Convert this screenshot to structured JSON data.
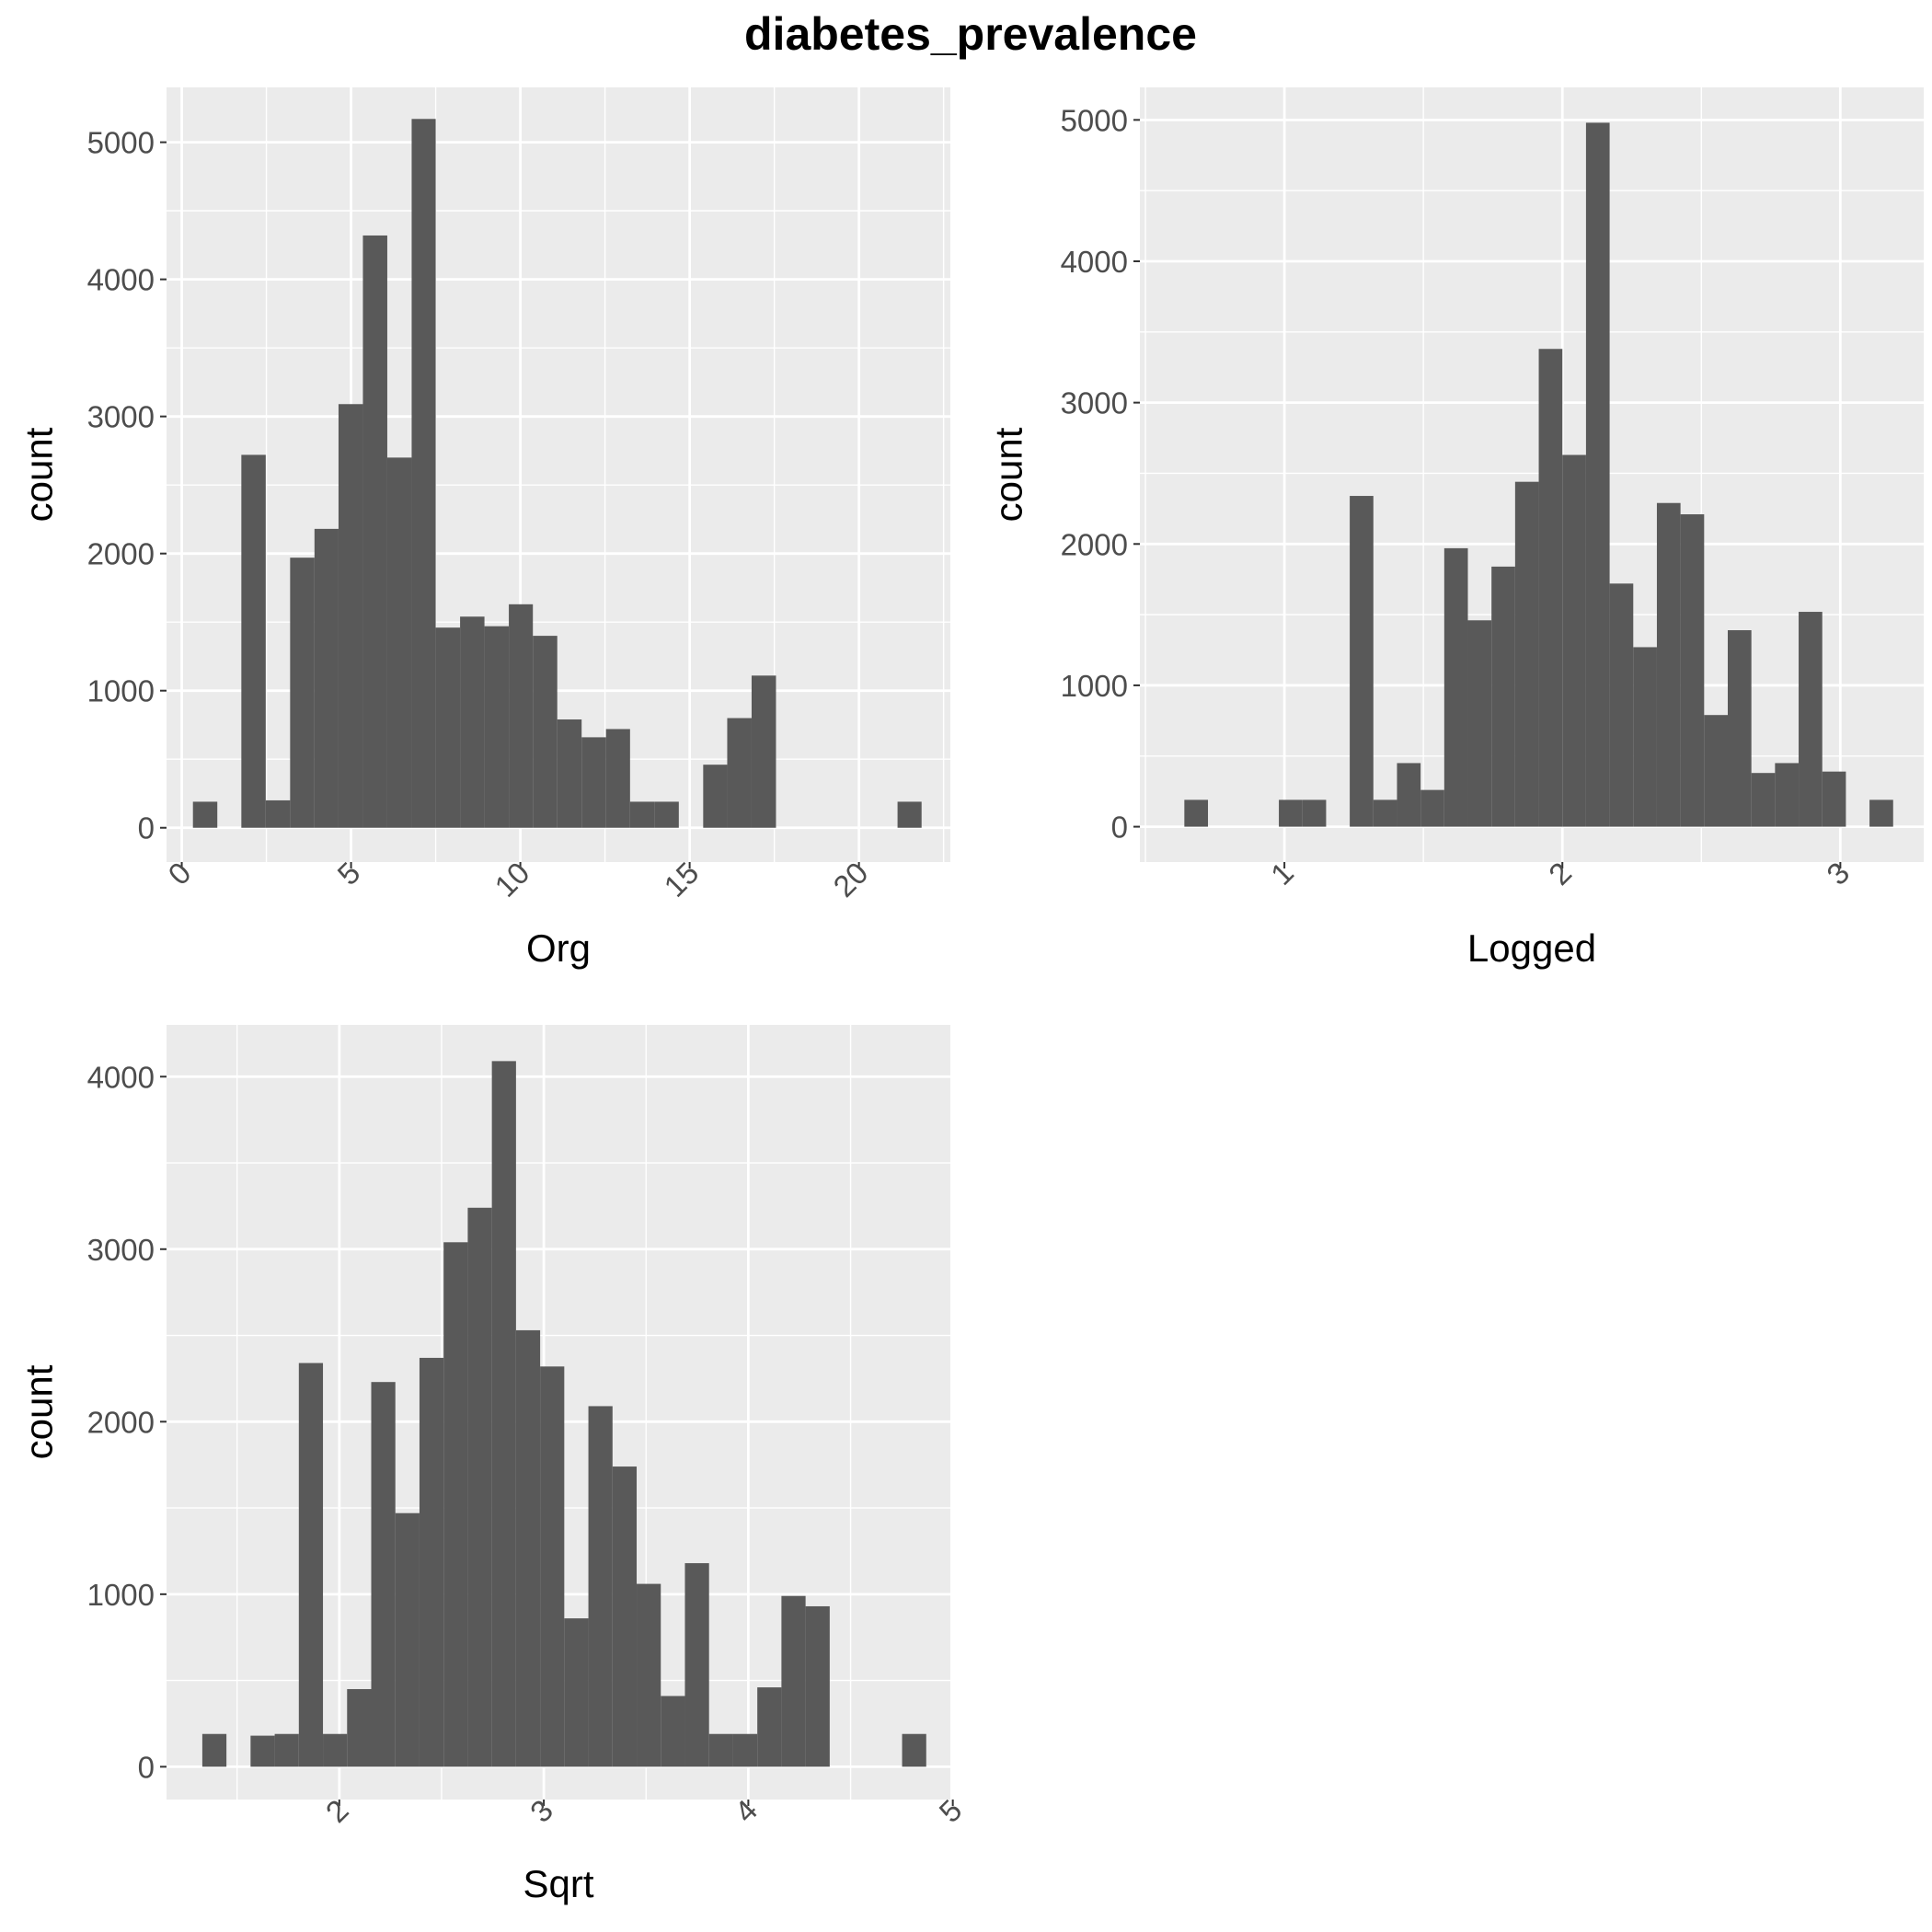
{
  "title": "diabetes_prevalence",
  "colors": {
    "panel_bg": "#EBEBEB",
    "grid_major": "#FFFFFF",
    "bar": "#595959",
    "tick_text": "#4D4D4D",
    "axis_title": "#000000"
  },
  "chart_data": [
    {
      "type": "bar",
      "title": "",
      "xlabel": "Org",
      "ylabel": "count",
      "xlim": [
        -0.45,
        22.7
      ],
      "ylim": [
        -250,
        5400
      ],
      "xticks": [
        0,
        5,
        10,
        15,
        20
      ],
      "xtick_labels": [
        "0",
        "5",
        "10",
        "15",
        "20"
      ],
      "yticks": [
        0,
        1000,
        2000,
        3000,
        4000,
        5000
      ],
      "ytick_labels": [
        "0",
        "1000",
        "2000",
        "3000",
        "4000",
        "5000"
      ],
      "bin_edges": [
        0.33,
        1.05,
        1.76,
        2.48,
        3.2,
        3.92,
        4.63,
        5.35,
        6.07,
        6.79,
        7.5,
        8.22,
        8.94,
        9.66,
        10.37,
        11.09,
        11.81,
        12.53,
        13.24,
        13.96,
        14.68,
        15.4,
        16.11,
        16.83,
        17.55,
        18.27,
        18.98,
        19.7,
        20.42,
        21.14,
        21.85
      ],
      "values": [
        190,
        0,
        2720,
        200,
        1970,
        2180,
        3090,
        4320,
        2700,
        5170,
        1460,
        1540,
        1470,
        1630,
        1400,
        790,
        660,
        720,
        190,
        190,
        0,
        460,
        800,
        1110,
        0,
        0,
        0,
        0,
        0,
        190
      ],
      "grid": true,
      "legend": "none"
    },
    {
      "type": "bar",
      "title": "",
      "xlabel": "Logged",
      "ylabel": "count",
      "xlim": [
        0.48,
        3.3
      ],
      "ylim": [
        -250,
        5230
      ],
      "xticks": [
        1,
        2,
        3
      ],
      "xtick_labels": [
        "1",
        "2",
        "3"
      ],
      "yticks": [
        0,
        1000,
        2000,
        3000,
        4000,
        5000
      ],
      "ytick_labels": [
        "0",
        "1000",
        "2000",
        "3000",
        "4000",
        "5000"
      ],
      "bin_edges": [
        0.64,
        0.725,
        0.81,
        0.895,
        0.98,
        1.065,
        1.15,
        1.235,
        1.32,
        1.405,
        1.49,
        1.575,
        1.66,
        1.745,
        1.83,
        1.915,
        2.0,
        2.085,
        2.17,
        2.255,
        2.34,
        2.425,
        2.51,
        2.595,
        2.68,
        2.765,
        2.85,
        2.935,
        3.02,
        3.105,
        3.19
      ],
      "values": [
        190,
        0,
        0,
        0,
        190,
        190,
        0,
        2340,
        190,
        450,
        260,
        1970,
        1460,
        1840,
        2440,
        3380,
        2630,
        4980,
        1720,
        1270,
        2290,
        2210,
        790,
        1390,
        380,
        450,
        1520,
        390,
        0,
        190
      ],
      "grid": true,
      "legend": "none"
    },
    {
      "type": "bar",
      "title": "",
      "xlabel": "Sqrt",
      "ylabel": "count",
      "xlim": [
        1.155,
        4.988
      ],
      "ylim": [
        -190,
        4300
      ],
      "xticks": [
        2,
        3,
        4,
        5
      ],
      "xtick_labels": [
        "2",
        "3",
        "4",
        "5"
      ],
      "yticks": [
        0,
        1000,
        2000,
        3000,
        4000
      ],
      "ytick_labels": [
        "0",
        "1000",
        "2000",
        "3000",
        "4000"
      ],
      "bin_edges": [
        1.33,
        1.448,
        1.566,
        1.684,
        1.802,
        1.92,
        2.038,
        2.156,
        2.274,
        2.392,
        2.51,
        2.628,
        2.746,
        2.864,
        2.982,
        3.1,
        3.218,
        3.336,
        3.454,
        3.572,
        3.69,
        3.808,
        3.926,
        4.044,
        4.162,
        4.28,
        4.398,
        4.516,
        4.634,
        4.752,
        4.87
      ],
      "values": [
        190,
        0,
        180,
        190,
        2340,
        190,
        450,
        2230,
        1470,
        2370,
        3040,
        3240,
        4090,
        2530,
        2320,
        860,
        2090,
        1740,
        1060,
        410,
        1180,
        190,
        190,
        460,
        990,
        930,
        0,
        0,
        0,
        190
      ],
      "grid": true,
      "legend": "none"
    }
  ]
}
